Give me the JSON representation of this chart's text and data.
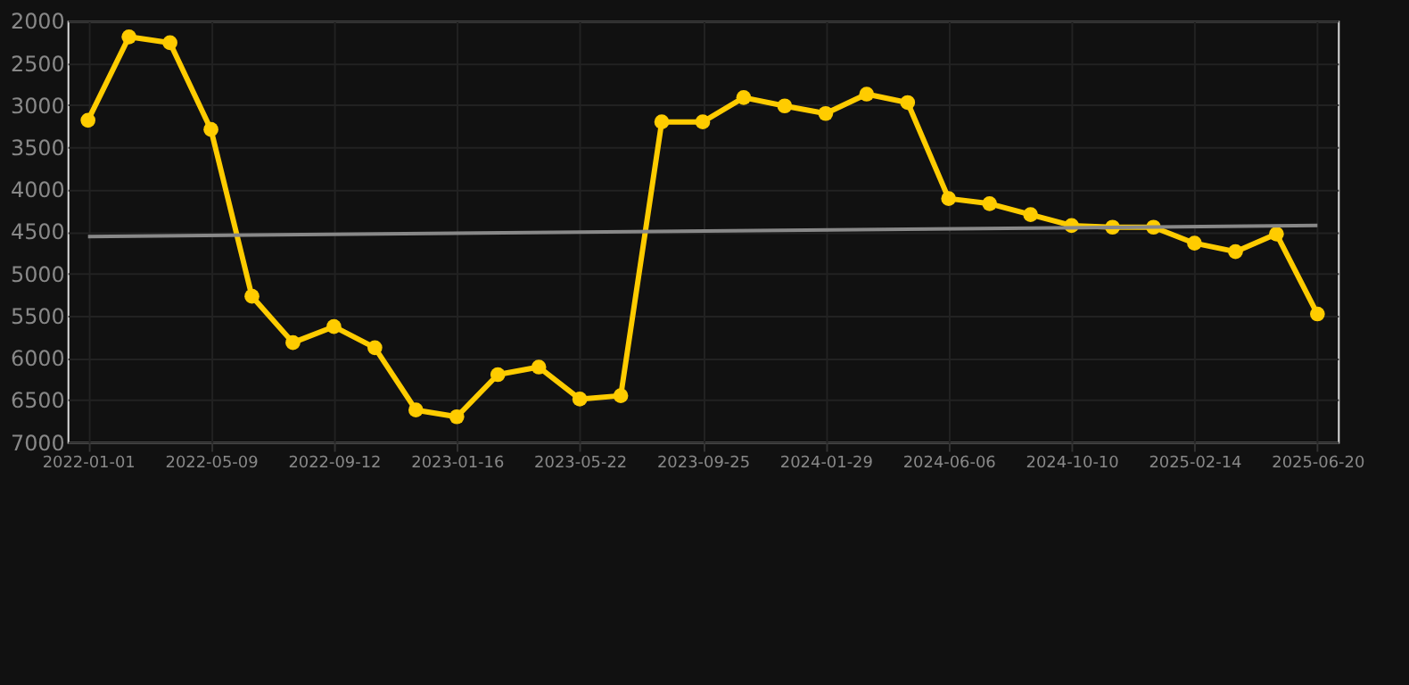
{
  "chart_data": {
    "type": "line",
    "categories": [
      "2022-01-01",
      null,
      null,
      "2022-05-09",
      null,
      null,
      "2022-09-12",
      null,
      null,
      "2023-01-16",
      null,
      null,
      "2023-05-22",
      null,
      null,
      "2023-09-25",
      null,
      null,
      "2024-01-29",
      null,
      null,
      "2024-06-06",
      null,
      null,
      "2024-10-10",
      null,
      null,
      "2025-02-14",
      null,
      null,
      "2025-06-20"
    ],
    "series": [
      {
        "color": "#ffcc00",
        "marker": "circle",
        "values": [
          3180,
          2190,
          2260,
          3290,
          5270,
          5820,
          5630,
          5880,
          6620,
          6700,
          6200,
          6110,
          6490,
          6450,
          3200,
          3200,
          2910,
          3010,
          3100,
          2870,
          2970,
          4110,
          4170,
          4300,
          4430,
          4450,
          4450,
          4640,
          4740,
          4530,
          5480
        ]
      },
      {
        "color": "#888888",
        "marker": "none",
        "values": [
          4560,
          null,
          null,
          null,
          null,
          null,
          null,
          null,
          null,
          null,
          null,
          null,
          null,
          null,
          null,
          null,
          null,
          null,
          null,
          null,
          null,
          null,
          null,
          null,
          null,
          null,
          null,
          null,
          null,
          null,
          4430
        ]
      }
    ],
    "ylim": [
      7000,
      2000
    ],
    "yticks": [
      2000,
      2500,
      3000,
      3500,
      4000,
      4500,
      5000,
      5500,
      6000,
      6500,
      7000
    ],
    "grid": true
  }
}
